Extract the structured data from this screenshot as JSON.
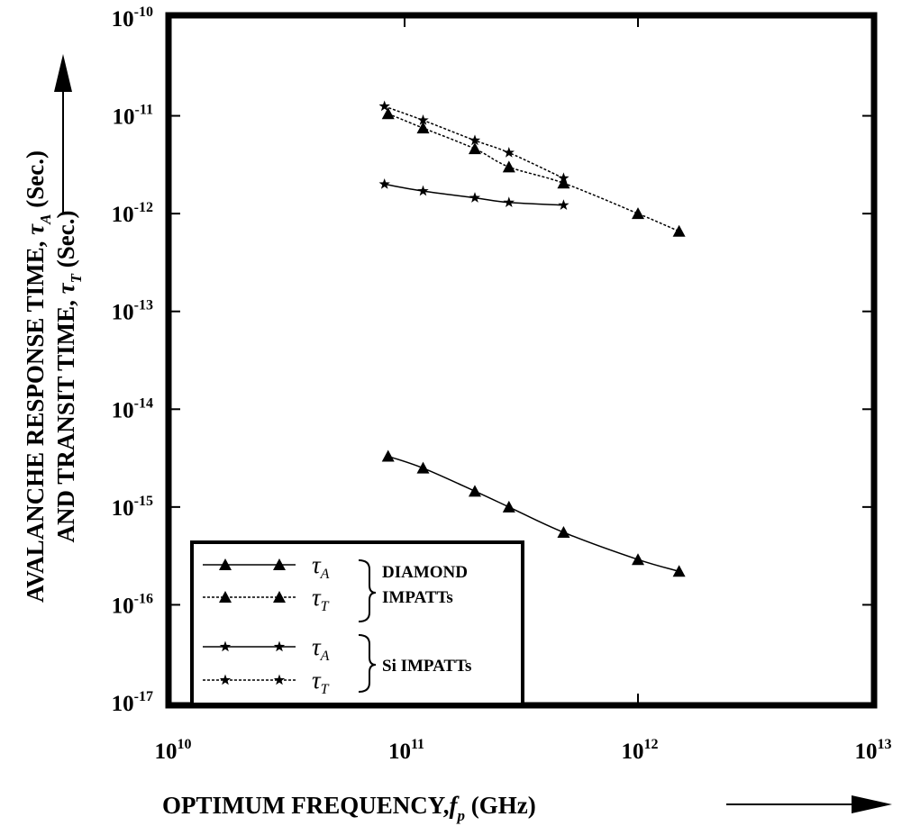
{
  "chart_data": {
    "type": "line",
    "x_scale": "log",
    "y_scale": "log",
    "xlim": [
      10000000000.0,
      10000000000000.0
    ],
    "ylim": [
      1e-17,
      1e-10
    ],
    "x_ticks": [
      {
        "base": "10",
        "exp": "10",
        "value": 10000000000.0
      },
      {
        "base": "10",
        "exp": "11",
        "value": 100000000000.0
      },
      {
        "base": "10",
        "exp": "12",
        "value": 1000000000000.0
      },
      {
        "base": "10",
        "exp": "13",
        "value": 10000000000000.0
      }
    ],
    "y_ticks": [
      {
        "base": "10",
        "exp": "-10",
        "value": 1e-10
      },
      {
        "base": "10",
        "exp": "-11",
        "value": 1e-11
      },
      {
        "base": "10",
        "exp": "-12",
        "value": 1e-12
      },
      {
        "base": "10",
        "exp": "-13",
        "value": 1e-13
      },
      {
        "base": "10",
        "exp": "-14",
        "value": 1e-14
      },
      {
        "base": "10",
        "exp": "-15",
        "value": 1e-15
      },
      {
        "base": "10",
        "exp": "-16",
        "value": 1e-16
      },
      {
        "base": "10",
        "exp": "-17",
        "value": 1e-17
      }
    ],
    "xlabel": {
      "prefix": "OPTIMUM FREQUENCY,",
      "symbol": "f",
      "sub": "p",
      "suffix": "(GHz)"
    },
    "ylabel_line1": {
      "prefix": "AVALANCHE RESPONSE TIME,",
      "symbol": "τ",
      "sub": "A",
      "suffix": "(Sec.)"
    },
    "ylabel_line2": {
      "prefix": "AND TRANSIT TIME,",
      "symbol": "τ",
      "sub": "T",
      "suffix": "(Sec.)"
    },
    "series": [
      {
        "name": "τA DIAMOND IMPATTs",
        "marker": "triangle",
        "dash": "solid",
        "x": [
          85000000000.0,
          120000000000.0,
          200000000000.0,
          280000000000.0,
          480000000000.0,
          1000000000000.0,
          1500000000000.0
        ],
        "y": [
          3.3e-15,
          2.5e-15,
          1.45e-15,
          1e-15,
          5.5e-16,
          2.9e-16,
          2.2e-16
        ]
      },
      {
        "name": "τT DIAMOND IMPATTs",
        "marker": "triangle",
        "dash": "dashed",
        "x": [
          85000000000.0,
          120000000000.0,
          200000000000.0,
          280000000000.0,
          480000000000.0,
          1000000000000.0,
          1500000000000.0
        ],
        "y": [
          1.05e-11,
          7.5e-12,
          4.6e-12,
          3e-12,
          2.05e-12,
          1e-12,
          6.6e-13
        ]
      },
      {
        "name": "τA Si IMPATTs",
        "marker": "star",
        "dash": "solid",
        "x": [
          82000000000.0,
          120000000000.0,
          200000000000.0,
          280000000000.0,
          480000000000.0
        ],
        "y": [
          2e-12,
          1.7e-12,
          1.45e-12,
          1.3e-12,
          1.22e-12
        ]
      },
      {
        "name": "τT Si IMPATTs",
        "marker": "star",
        "dash": "dashed",
        "x": [
          82000000000.0,
          120000000000.0,
          200000000000.0,
          280000000000.0,
          480000000000.0
        ],
        "y": [
          1.25e-11,
          9e-12,
          5.6e-12,
          4.2e-12,
          2.3e-12
        ]
      }
    ],
    "legend": {
      "placement": "bottom-left",
      "entries": [
        {
          "symbol": "τ",
          "sub": "A",
          "marker": "triangle",
          "dash": "solid"
        },
        {
          "symbol": "τ",
          "sub": "T",
          "marker": "triangle",
          "dash": "dashed"
        },
        {
          "symbol": "τ",
          "sub": "A",
          "marker": "star",
          "dash": "solid"
        },
        {
          "symbol": "τ",
          "sub": "T",
          "marker": "star",
          "dash": "dashed"
        }
      ],
      "group1_line1": "DIAMOND",
      "group1_line2": "IMPATTs",
      "group2_line1": "Si IMPATTs"
    },
    "grid": false,
    "colors": {
      "ink": "#000000",
      "background": "#ffffff"
    }
  }
}
